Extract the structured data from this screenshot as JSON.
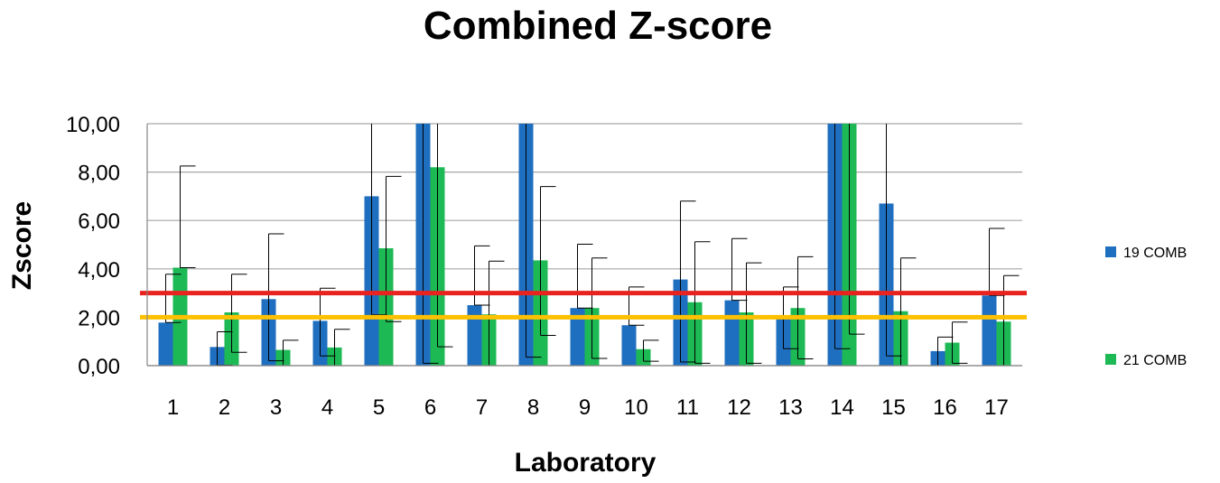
{
  "chart_data": {
    "type": "bar",
    "title": "Combined Z-score",
    "xlabel": "Laboratory",
    "ylabel": "Zscore",
    "ylim": [
      0,
      10
    ],
    "y_ticks": [
      "0,00",
      "2,00",
      "4,00",
      "6,00",
      "8,00",
      "10,00"
    ],
    "y_tick_values": [
      0,
      2,
      4,
      6,
      8,
      10
    ],
    "categories": [
      "1",
      "2",
      "3",
      "4",
      "5",
      "6",
      "7",
      "8",
      "9",
      "10",
      "11",
      "12",
      "13",
      "14",
      "15",
      "16",
      "17"
    ],
    "series": [
      {
        "name": "19 COMB",
        "color": "#1f6fc0",
        "values": [
          1.78,
          0.77,
          2.75,
          1.85,
          7.0,
          10.0,
          2.5,
          10.0,
          2.38,
          1.67,
          3.56,
          2.7,
          2.0,
          10.0,
          6.7,
          0.6,
          2.9
        ],
        "err_low": [
          1.78,
          0.02,
          0.2,
          0.4,
          2.1,
          0.1,
          2.5,
          0.35,
          2.38,
          1.67,
          0.15,
          2.7,
          0.7,
          0.7,
          0.4,
          0.0,
          2.9
        ],
        "err_high": [
          3.78,
          1.4,
          5.45,
          3.2,
          10.0,
          10.0,
          4.95,
          10.0,
          5.02,
          3.25,
          6.8,
          5.25,
          3.25,
          10.0,
          10.0,
          1.18,
          5.67
        ]
      },
      {
        "name": "21 COMB",
        "color": "#1db954",
        "values": [
          4.05,
          2.2,
          0.65,
          0.75,
          4.85,
          8.2,
          2.12,
          4.35,
          2.38,
          0.68,
          2.62,
          2.2,
          2.38,
          10.0,
          2.25,
          0.95,
          1.82
        ],
        "err_low": [
          4.05,
          0.55,
          0.0,
          0.0,
          1.82,
          0.78,
          0.0,
          1.25,
          0.3,
          0.18,
          0.1,
          0.1,
          0.28,
          1.3,
          0.0,
          0.1,
          0.0
        ],
        "err_high": [
          8.25,
          3.78,
          1.05,
          1.5,
          7.82,
          10.0,
          4.32,
          7.4,
          4.45,
          1.05,
          5.12,
          4.25,
          4.5,
          10.0,
          4.45,
          1.8,
          3.72
        ]
      }
    ],
    "reference_lines": [
      {
        "value": 3.0,
        "color": "#e8231f"
      },
      {
        "value": 2.0,
        "color": "#ffc000"
      }
    ],
    "grid": true,
    "legend_position": "right"
  }
}
